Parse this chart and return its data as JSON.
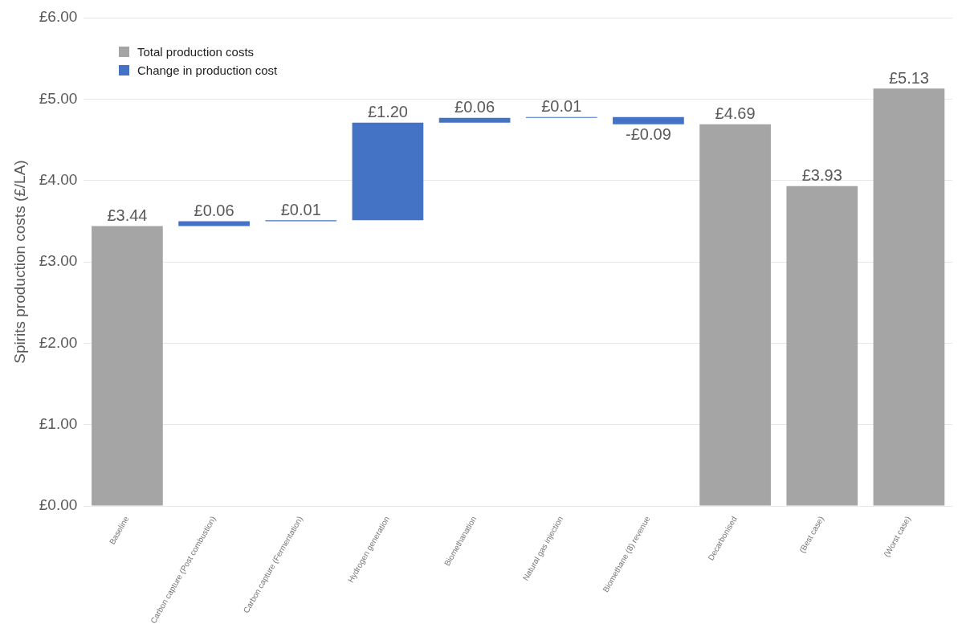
{
  "chart_data": {
    "type": "bar",
    "ylabel": "Spirits production costs (£/LA)",
    "categories": [
      "Baseline",
      "Carbon capture (Post combustion)",
      "Carbon capture (Fermentation)",
      "Hydrogen generation",
      "Biomethanation",
      "Natural gas injection",
      "Biomethane (8) revenue",
      "Decarbonised",
      "(Best case)",
      "(Worst case)"
    ],
    "series": [
      {
        "name": "Total production costs",
        "color": "#a5a5a5",
        "values": [
          3.44,
          null,
          null,
          null,
          null,
          null,
          null,
          4.69,
          3.93,
          5.13
        ],
        "value_labels": [
          "£3.44",
          null,
          null,
          null,
          null,
          null,
          null,
          "£4.69",
          "£3.93",
          "£5.13"
        ]
      },
      {
        "name": "Change in production cost",
        "color": "#4472c4",
        "values": [
          null,
          0.06,
          0.01,
          1.2,
          0.06,
          0.01,
          -0.09,
          null,
          null,
          null
        ],
        "base": [
          null,
          3.44,
          3.5,
          3.51,
          4.71,
          4.77,
          4.78,
          null,
          null,
          null
        ],
        "value_labels": [
          null,
          "£0.06",
          "£0.01",
          "£1.20",
          "£0.06",
          "£0.01",
          "-£0.09",
          null,
          null,
          null
        ]
      }
    ],
    "ylim": [
      0,
      6
    ],
    "yticks": [
      {
        "value": 0,
        "label": "£0.00"
      },
      {
        "value": 1,
        "label": "£1.00"
      },
      {
        "value": 2,
        "label": "£2.00"
      },
      {
        "value": 3,
        "label": "£3.00"
      },
      {
        "value": 4,
        "label": "£4.00"
      },
      {
        "value": 5,
        "label": "£5.00"
      },
      {
        "value": 6,
        "label": "£6.00"
      }
    ],
    "grid": "y",
    "legend": "top left"
  }
}
